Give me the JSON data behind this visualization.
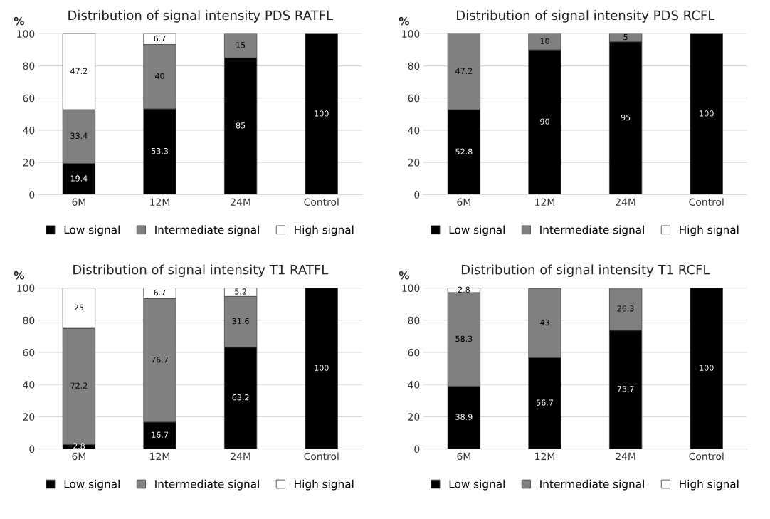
{
  "chart_data": [
    {
      "type": "bar",
      "stacked": true,
      "title": "Distribution of signal intensity PDS RATFL",
      "ylabel": "%",
      "categories": [
        "6M",
        "12M",
        "24M",
        "Control"
      ],
      "ylim": [
        0,
        100
      ],
      "yticks": [
        0,
        20,
        40,
        60,
        80,
        100
      ],
      "grid": "y",
      "legend": "bottom",
      "series": [
        {
          "name": "Low signal",
          "color": "#000000",
          "values": [
            19.4,
            53.3,
            85,
            100
          ],
          "value_labels": [
            "19.4",
            "53.3",
            "85",
            "100"
          ]
        },
        {
          "name": "Intermediate signal",
          "color": "#808080",
          "values": [
            33.4,
            40,
            15,
            null
          ],
          "value_labels": [
            "33.4",
            "40",
            "15",
            null
          ]
        },
        {
          "name": "High signal",
          "color": "#ffffff",
          "values": [
            47.2,
            6.7,
            null,
            null
          ],
          "value_labels": [
            "47.2",
            "6.7",
            null,
            null
          ]
        }
      ]
    },
    {
      "type": "bar",
      "stacked": true,
      "title": "Distribution of signal intensity PDS RCFL",
      "ylabel": "%",
      "categories": [
        "6M",
        "12M",
        "24M",
        "Control"
      ],
      "ylim": [
        0,
        100
      ],
      "yticks": [
        0,
        20,
        40,
        60,
        80,
        100
      ],
      "grid": "y",
      "legend": "bottom",
      "series": [
        {
          "name": "Low signal",
          "color": "#000000",
          "values": [
            52.8,
            90,
            95,
            100
          ],
          "value_labels": [
            "52.8",
            "90",
            "95",
            "100"
          ]
        },
        {
          "name": "Intermediate signal",
          "color": "#808080",
          "values": [
            47.2,
            10,
            5,
            null
          ],
          "value_labels": [
            "47.2",
            "10",
            "5",
            null
          ]
        },
        {
          "name": "High signal",
          "color": "#ffffff",
          "values": [
            null,
            null,
            null,
            null
          ],
          "value_labels": [
            null,
            null,
            null,
            null
          ]
        }
      ]
    },
    {
      "type": "bar",
      "stacked": true,
      "title": "Distribution of signal intensity T1 RATFL",
      "ylabel": "%",
      "categories": [
        "6M",
        "12M",
        "24M",
        "Control"
      ],
      "ylim": [
        0,
        100
      ],
      "yticks": [
        0,
        20,
        40,
        60,
        80,
        100
      ],
      "grid": "y",
      "legend": "bottom",
      "series": [
        {
          "name": "Low signal",
          "color": "#000000",
          "values": [
            2.8,
            16.7,
            63.2,
            100
          ],
          "value_labels": [
            "2.8",
            "16.7",
            "63.2",
            "100"
          ]
        },
        {
          "name": "Intermediate signal",
          "color": "#808080",
          "values": [
            72.2,
            76.7,
            31.6,
            null
          ],
          "value_labels": [
            "72.2",
            "76.7",
            "31.6",
            null
          ]
        },
        {
          "name": "High signal",
          "color": "#ffffff",
          "values": [
            25,
            6.7,
            5.2,
            null
          ],
          "value_labels": [
            "25",
            "6.7",
            "5.2",
            null
          ]
        }
      ]
    },
    {
      "type": "bar",
      "stacked": true,
      "title": "Distribution of signal intensity T1 RCFL",
      "ylabel": "%",
      "categories": [
        "6M",
        "12M",
        "24M",
        "Control"
      ],
      "ylim": [
        0,
        100
      ],
      "yticks": [
        0,
        20,
        40,
        60,
        80,
        100
      ],
      "grid": "y",
      "legend": "bottom",
      "series": [
        {
          "name": "Low signal",
          "color": "#000000",
          "values": [
            38.9,
            56.7,
            73.7,
            100
          ],
          "value_labels": [
            "38.9",
            "56.7",
            "73.7",
            "100"
          ]
        },
        {
          "name": "Intermediate signal",
          "color": "#808080",
          "values": [
            58.3,
            43,
            26.3,
            null
          ],
          "value_labels": [
            "58.3",
            "43",
            "26.3",
            null
          ]
        },
        {
          "name": "High signal",
          "color": "#ffffff",
          "values": [
            2.8,
            null,
            null,
            null
          ],
          "value_labels": [
            "2.8",
            null,
            null,
            null
          ]
        }
      ]
    }
  ]
}
